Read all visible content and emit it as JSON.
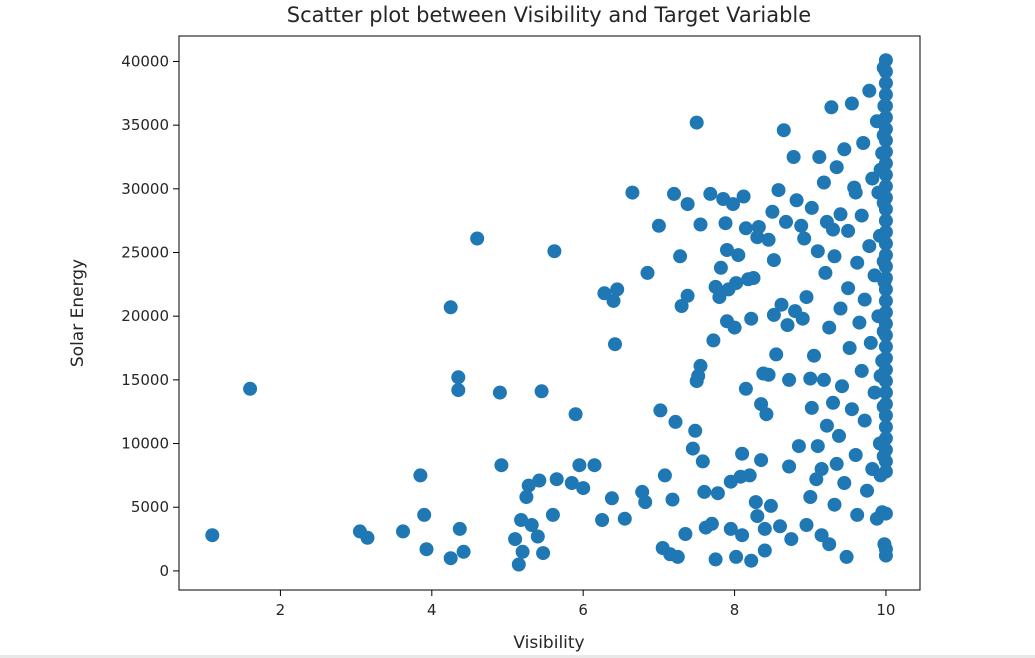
{
  "chart_data": {
    "type": "scatter",
    "title": "Scatter plot between Visibility and Target Variable",
    "xlabel": "Visibility",
    "ylabel": "Solar Energy",
    "xlim": [
      0.66,
      10.45
    ],
    "ylim": [
      -1500,
      42000
    ],
    "xticks": [
      2,
      4,
      6,
      8,
      10
    ],
    "yticks": [
      0,
      5000,
      10000,
      15000,
      20000,
      25000,
      30000,
      35000,
      40000
    ],
    "grid": false,
    "legend": "none",
    "color": "#1f77b4",
    "points": [
      [
        1.1,
        2800
      ],
      [
        1.6,
        14300
      ],
      [
        3.05,
        3100
      ],
      [
        3.15,
        2600
      ],
      [
        3.62,
        3100
      ],
      [
        3.85,
        7500
      ],
      [
        3.9,
        4400
      ],
      [
        3.93,
        1700
      ],
      [
        4.25,
        20700
      ],
      [
        4.25,
        1000
      ],
      [
        4.35,
        15200
      ],
      [
        4.35,
        14200
      ],
      [
        4.37,
        3300
      ],
      [
        4.42,
        1500
      ],
      [
        4.6,
        26100
      ],
      [
        4.9,
        14000
      ],
      [
        4.92,
        8300
      ],
      [
        5.1,
        2500
      ],
      [
        5.15,
        500
      ],
      [
        5.18,
        4000
      ],
      [
        5.2,
        1500
      ],
      [
        5.25,
        5800
      ],
      [
        5.28,
        6700
      ],
      [
        5.32,
        3600
      ],
      [
        5.4,
        2700
      ],
      [
        5.42,
        7100
      ],
      [
        5.45,
        14100
      ],
      [
        5.47,
        1400
      ],
      [
        5.6,
        4400
      ],
      [
        5.62,
        25100
      ],
      [
        5.65,
        7200
      ],
      [
        5.85,
        6900
      ],
      [
        5.9,
        12300
      ],
      [
        5.95,
        8300
      ],
      [
        6.0,
        6500
      ],
      [
        6.15,
        8300
      ],
      [
        6.25,
        4000
      ],
      [
        6.28,
        21800
      ],
      [
        6.38,
        5700
      ],
      [
        6.4,
        21200
      ],
      [
        6.42,
        17800
      ],
      [
        6.45,
        22100
      ],
      [
        6.55,
        4100
      ],
      [
        6.65,
        29700
      ],
      [
        6.78,
        6200
      ],
      [
        6.82,
        5400
      ],
      [
        6.85,
        23400
      ],
      [
        7.0,
        27100
      ],
      [
        7.02,
        12600
      ],
      [
        7.05,
        1800
      ],
      [
        7.08,
        7500
      ],
      [
        7.15,
        1300
      ],
      [
        7.18,
        5600
      ],
      [
        7.2,
        29600
      ],
      [
        7.22,
        11700
      ],
      [
        7.25,
        1100
      ],
      [
        7.28,
        24700
      ],
      [
        7.3,
        20800
      ],
      [
        7.35,
        2900
      ],
      [
        7.38,
        28800
      ],
      [
        7.38,
        21600
      ],
      [
        7.45,
        9600
      ],
      [
        7.48,
        11000
      ],
      [
        7.5,
        35200
      ],
      [
        7.5,
        14900
      ],
      [
        7.52,
        15300
      ],
      [
        7.55,
        16100
      ],
      [
        7.55,
        27200
      ],
      [
        7.58,
        8600
      ],
      [
        7.6,
        6200
      ],
      [
        7.62,
        3400
      ],
      [
        7.68,
        29600
      ],
      [
        7.7,
        3700
      ],
      [
        7.72,
        18100
      ],
      [
        7.75,
        22300
      ],
      [
        7.75,
        900
      ],
      [
        7.78,
        6100
      ],
      [
        7.8,
        21500
      ],
      [
        7.82,
        23800
      ],
      [
        7.85,
        29200
      ],
      [
        7.88,
        27300
      ],
      [
        7.9,
        25200
      ],
      [
        7.9,
        19600
      ],
      [
        7.92,
        22100
      ],
      [
        7.95,
        7000
      ],
      [
        7.95,
        3300
      ],
      [
        7.98,
        28800
      ],
      [
        8.0,
        19100
      ],
      [
        8.02,
        22600
      ],
      [
        8.02,
        1100
      ],
      [
        8.05,
        24800
      ],
      [
        8.08,
        7400
      ],
      [
        8.1,
        9200
      ],
      [
        8.1,
        2800
      ],
      [
        8.12,
        29400
      ],
      [
        8.15,
        26900
      ],
      [
        8.15,
        14300
      ],
      [
        8.18,
        22900
      ],
      [
        8.2,
        7500
      ],
      [
        8.22,
        19800
      ],
      [
        8.22,
        800
      ],
      [
        8.25,
        23000
      ],
      [
        8.28,
        5400
      ],
      [
        8.3,
        26200
      ],
      [
        8.3,
        4300
      ],
      [
        8.32,
        27000
      ],
      [
        8.35,
        13100
      ],
      [
        8.35,
        8700
      ],
      [
        8.38,
        15500
      ],
      [
        8.4,
        3300
      ],
      [
        8.4,
        1600
      ],
      [
        8.42,
        12300
      ],
      [
        8.45,
        26000
      ],
      [
        8.45,
        15400
      ],
      [
        8.48,
        5100
      ],
      [
        8.5,
        28200
      ],
      [
        8.52,
        24400
      ],
      [
        8.52,
        20100
      ],
      [
        8.55,
        17000
      ],
      [
        8.58,
        29900
      ],
      [
        8.6,
        3500
      ],
      [
        8.62,
        20900
      ],
      [
        8.65,
        34600
      ],
      [
        8.68,
        27400
      ],
      [
        8.7,
        19300
      ],
      [
        8.72,
        15000
      ],
      [
        8.72,
        8200
      ],
      [
        8.75,
        2500
      ],
      [
        8.78,
        32500
      ],
      [
        8.8,
        20400
      ],
      [
        8.82,
        29100
      ],
      [
        8.85,
        9800
      ],
      [
        8.88,
        27100
      ],
      [
        8.9,
        19800
      ],
      [
        8.92,
        26100
      ],
      [
        8.95,
        3600
      ],
      [
        8.95,
        21500
      ],
      [
        9.0,
        15100
      ],
      [
        9.0,
        5800
      ],
      [
        9.02,
        28500
      ],
      [
        9.02,
        12800
      ],
      [
        9.05,
        16900
      ],
      [
        9.08,
        7200
      ],
      [
        9.1,
        25100
      ],
      [
        9.1,
        9800
      ],
      [
        9.12,
        32500
      ],
      [
        9.15,
        8000
      ],
      [
        9.15,
        2800
      ],
      [
        9.18,
        30500
      ],
      [
        9.18,
        15000
      ],
      [
        9.2,
        23400
      ],
      [
        9.22,
        27400
      ],
      [
        9.22,
        11400
      ],
      [
        9.25,
        19100
      ],
      [
        9.25,
        2100
      ],
      [
        9.28,
        36400
      ],
      [
        9.3,
        26800
      ],
      [
        9.3,
        13200
      ],
      [
        9.32,
        24700
      ],
      [
        9.32,
        5200
      ],
      [
        9.35,
        31700
      ],
      [
        9.35,
        8400
      ],
      [
        9.38,
        10600
      ],
      [
        9.4,
        28000
      ],
      [
        9.4,
        20600
      ],
      [
        9.42,
        14500
      ],
      [
        9.45,
        33100
      ],
      [
        9.45,
        6900
      ],
      [
        9.48,
        1100
      ],
      [
        9.5,
        26700
      ],
      [
        9.5,
        22200
      ],
      [
        9.52,
        17500
      ],
      [
        9.55,
        36700
      ],
      [
        9.55,
        12700
      ],
      [
        9.58,
        30100
      ],
      [
        9.6,
        29700
      ],
      [
        9.6,
        9100
      ],
      [
        9.62,
        24200
      ],
      [
        9.62,
        4400
      ],
      [
        9.65,
        19500
      ],
      [
        9.68,
        15700
      ],
      [
        9.68,
        27900
      ],
      [
        9.7,
        33600
      ],
      [
        9.72,
        21300
      ],
      [
        9.72,
        11800
      ],
      [
        9.75,
        6300
      ],
      [
        9.78,
        25500
      ],
      [
        9.78,
        37700
      ],
      [
        9.8,
        17900
      ],
      [
        9.82,
        30800
      ],
      [
        9.82,
        8000
      ],
      [
        9.85,
        23200
      ],
      [
        9.85,
        14000
      ],
      [
        9.88,
        35300
      ],
      [
        9.88,
        4100
      ],
      [
        9.9,
        29700
      ],
      [
        9.9,
        20000
      ],
      [
        9.92,
        26300
      ],
      [
        9.92,
        10000
      ],
      [
        9.95,
        32800
      ],
      [
        9.95,
        16500
      ],
      [
        9.95,
        4600
      ],
      [
        9.98,
        2100
      ],
      [
        9.98,
        36500
      ],
      [
        9.98,
        22700
      ],
      [
        10.0,
        40100
      ],
      [
        10.0,
        39200
      ],
      [
        10.0,
        38300
      ],
      [
        10.0,
        37400
      ],
      [
        10.0,
        36500
      ],
      [
        10.0,
        35600
      ],
      [
        10.0,
        34700
      ],
      [
        10.0,
        33800
      ],
      [
        10.0,
        32900
      ],
      [
        10.0,
        32000
      ],
      [
        10.0,
        31100
      ],
      [
        10.0,
        30200
      ],
      [
        10.0,
        29300
      ],
      [
        10.0,
        28400
      ],
      [
        10.0,
        27500
      ],
      [
        10.0,
        26600
      ],
      [
        10.0,
        25700
      ],
      [
        10.0,
        24800
      ],
      [
        10.0,
        23900
      ],
      [
        10.0,
        23000
      ],
      [
        10.0,
        22100
      ],
      [
        10.0,
        21200
      ],
      [
        10.0,
        20300
      ],
      [
        10.0,
        19400
      ],
      [
        10.0,
        18500
      ],
      [
        10.0,
        17600
      ],
      [
        10.0,
        16700
      ],
      [
        10.0,
        15800
      ],
      [
        10.0,
        14900
      ],
      [
        10.0,
        14000
      ],
      [
        10.0,
        13100
      ],
      [
        10.0,
        12200
      ],
      [
        10.0,
        11300
      ],
      [
        10.0,
        10400
      ],
      [
        10.0,
        9500
      ],
      [
        10.0,
        8600
      ],
      [
        10.0,
        7800
      ],
      [
        10.0,
        4500
      ],
      [
        10.0,
        1700
      ],
      [
        10.0,
        1200
      ],
      [
        9.97,
        39500
      ],
      [
        9.97,
        34200
      ],
      [
        9.97,
        28900
      ],
      [
        9.97,
        24300
      ],
      [
        9.97,
        18800
      ],
      [
        9.97,
        12900
      ],
      [
        9.97,
        9000
      ],
      [
        9.93,
        31500
      ],
      [
        9.93,
        15300
      ],
      [
        9.93,
        7500
      ]
    ]
  }
}
